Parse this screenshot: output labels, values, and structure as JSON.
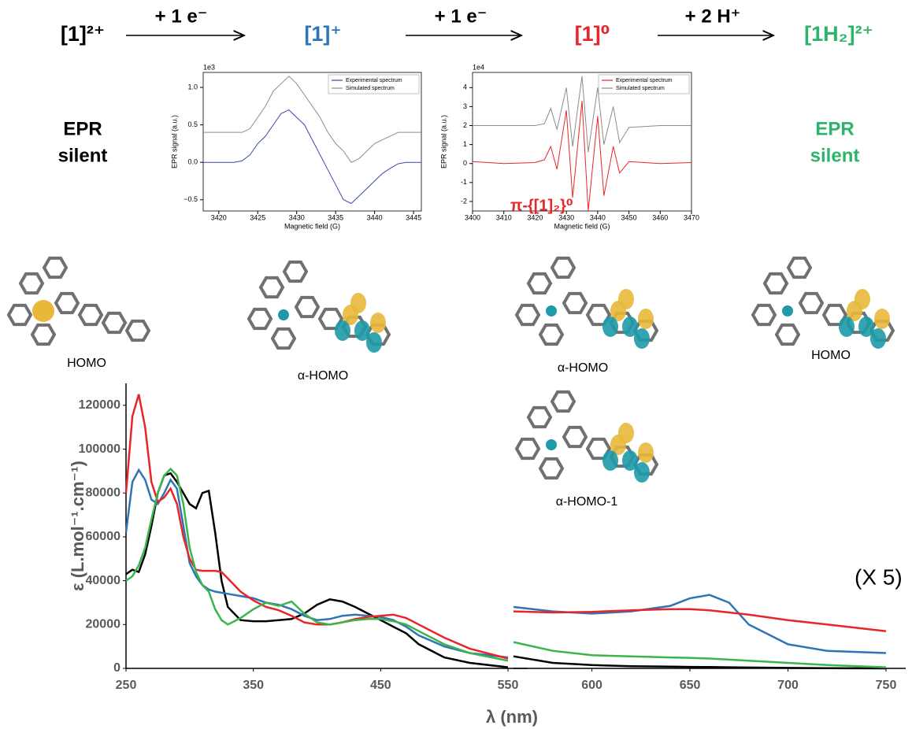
{
  "scheme": {
    "species": [
      {
        "text": "[1]²⁺",
        "color": "#000000"
      },
      {
        "text": "[1]⁺",
        "color": "#2e75b6"
      },
      {
        "text": "[1]⁰",
        "color": "#e8262a"
      },
      {
        "text": "[1H₂]²⁺",
        "color": "#2db36a"
      }
    ],
    "steps": [
      "+ 1 e⁻",
      "+ 1 e⁻",
      "+ 2 H⁺"
    ]
  },
  "epr_notes": [
    {
      "lines": [
        "EPR",
        "silent"
      ],
      "color": "#000000"
    },
    {
      "lines": [
        "EPR",
        "silent"
      ],
      "color": "#2db36a"
    }
  ],
  "orbitals": [
    "HOMO",
    "α-HOMO",
    "α-HOMO",
    "α-HOMO-1",
    "HOMO"
  ],
  "chart_data": [
    {
      "type": "line",
      "x_label": "Magnetic field (G)",
      "y_label": "EPR signal (a.u.)",
      "y_scale_label": "1e3",
      "xlim": [
        3418,
        3446
      ],
      "ylim": [
        -0.65,
        1.2
      ],
      "xticks": [
        3420,
        3425,
        3430,
        3435,
        3440,
        3445
      ],
      "yticks": [
        {
          "value": -0.5,
          "label": "−0.5"
        },
        {
          "value": 0,
          "label": "0.0"
        },
        {
          "value": 0.5,
          "label": "0.5"
        },
        {
          "value": 1.0,
          "label": "1.0"
        }
      ],
      "x": [
        3418,
        3419,
        3420,
        3421,
        3422,
        3423,
        3424,
        3425,
        3426,
        3427,
        3428,
        3429,
        3430,
        3431,
        3432,
        3433,
        3434,
        3435,
        3436,
        3437,
        3438,
        3439,
        3440,
        3441,
        3442,
        3443,
        3444,
        3445,
        3446
      ],
      "series": [
        {
          "name": "Experimental spectrum",
          "color": "#3b4aa8",
          "values": [
            0,
            0,
            0,
            0,
            0,
            0.02,
            0.1,
            0.25,
            0.35,
            0.5,
            0.65,
            0.7,
            0.6,
            0.5,
            0.3,
            0.1,
            -0.1,
            -0.3,
            -0.5,
            -0.55,
            -0.45,
            -0.35,
            -0.25,
            -0.15,
            -0.08,
            -0.02,
            0,
            0,
            0
          ]
        },
        {
          "name": "Simulated spectrum",
          "color": "#8c8c8c",
          "values": [
            0.4,
            0.4,
            0.4,
            0.4,
            0.4,
            0.4,
            0.45,
            0.6,
            0.75,
            0.95,
            1.05,
            1.15,
            1.05,
            0.9,
            0.75,
            0.6,
            0.4,
            0.25,
            0.15,
            0.0,
            0.05,
            0.15,
            0.25,
            0.3,
            0.35,
            0.4,
            0.4,
            0.4,
            0.4
          ]
        }
      ]
    },
    {
      "type": "line",
      "x_label": "Magnetic field (G)",
      "y_label": "EPR signal (a.u.)",
      "y_scale_label": "1e4",
      "annotation": "π-{[1]₂}⁰",
      "annotation_color": "#e8262a",
      "xlim": [
        3400,
        3470
      ],
      "ylim": [
        -2.5,
        4.8
      ],
      "xticks": [
        3400,
        3410,
        3420,
        3430,
        3440,
        3450,
        3460,
        3470
      ],
      "yticks": [
        -2,
        -1,
        0,
        1,
        2,
        3,
        4
      ],
      "x": [
        3400,
        3410,
        3420,
        3423,
        3425,
        3427,
        3430,
        3432,
        3435,
        3437,
        3440,
        3442,
        3445,
        3447,
        3450,
        3460,
        3470
      ],
      "series": [
        {
          "name": "Experimental spectrum",
          "color": "#e8262a",
          "values": [
            0.1,
            0,
            0.05,
            0.2,
            0.9,
            -0.3,
            2.8,
            -1.8,
            3.3,
            -2.5,
            2.5,
            -1.7,
            0.9,
            -0.5,
            0.1,
            0,
            0.05
          ]
        },
        {
          "name": "Simulated spectrum",
          "color": "#8c8c8c",
          "values": [
            2,
            2,
            2,
            2.1,
            2.9,
            1.8,
            4.0,
            0.9,
            4.6,
            0.6,
            4.0,
            1.0,
            3.0,
            1.1,
            1.9,
            2,
            2
          ]
        }
      ]
    },
    {
      "type": "line",
      "x_label": "λ (nm)",
      "y_label": "ε (L.mol⁻¹.cm⁻¹)",
      "xlim": [
        250,
        550
      ],
      "ylim": [
        0,
        130000
      ],
      "xticks": [
        250,
        350,
        450,
        550
      ],
      "yticks": [
        0,
        20000,
        40000,
        60000,
        80000,
        100000,
        120000
      ],
      "x": [
        250,
        255,
        260,
        265,
        270,
        275,
        280,
        285,
        290,
        295,
        300,
        305,
        310,
        315,
        320,
        325,
        330,
        340,
        350,
        360,
        370,
        380,
        390,
        400,
        410,
        420,
        430,
        440,
        450,
        460,
        470,
        480,
        500,
        520,
        550
      ],
      "series": [
        {
          "color": "#000000",
          "values": [
            43000,
            45000,
            44000,
            52000,
            65000,
            80000,
            88000,
            89000,
            85000,
            80000,
            75000,
            73000,
            80000,
            81000,
            62000,
            40000,
            28000,
            22000,
            21500,
            21500,
            22000,
            22500,
            25000,
            29000,
            31500,
            30500,
            28000,
            25000,
            22000,
            19000,
            16000,
            11000,
            5000,
            2500,
            500
          ]
        },
        {
          "color": "#2e75b6",
          "values": [
            62000,
            85000,
            90500,
            86000,
            77000,
            75000,
            80000,
            86000,
            82000,
            65000,
            48000,
            42000,
            38000,
            36000,
            35000,
            34500,
            34000,
            33000,
            32000,
            30000,
            29000,
            27000,
            24000,
            22000,
            22500,
            24000,
            24500,
            24000,
            23500,
            22000,
            19000,
            15000,
            10000,
            7000,
            5000
          ]
        },
        {
          "color": "#e8262a",
          "values": [
            80000,
            115000,
            125000,
            110000,
            85000,
            76000,
            78000,
            82000,
            75000,
            60000,
            50000,
            45000,
            44500,
            44500,
            44500,
            44000,
            41000,
            35000,
            31000,
            28000,
            26500,
            24000,
            21000,
            20000,
            20000,
            21000,
            22500,
            23500,
            24000,
            24500,
            23000,
            20000,
            14000,
            9000,
            4500
          ]
        },
        {
          "color": "#3cb44b",
          "values": [
            40000,
            42000,
            47000,
            55000,
            68000,
            80000,
            88000,
            91000,
            88000,
            75000,
            55000,
            44000,
            38000,
            35000,
            27000,
            22000,
            20000,
            23000,
            27000,
            30000,
            28500,
            30500,
            25000,
            21000,
            20000,
            21000,
            22000,
            22500,
            22500,
            21500,
            20000,
            17000,
            11000,
            7000,
            3500
          ]
        }
      ]
    },
    {
      "type": "line",
      "annotation": "(X 5)",
      "xlim": [
        560,
        750
      ],
      "ylim": [
        0,
        130000
      ],
      "xticks": [
        600,
        650,
        700,
        750
      ],
      "x": [
        560,
        580,
        600,
        620,
        640,
        650,
        660,
        670,
        680,
        700,
        720,
        750
      ],
      "series": [
        {
          "color": "#000000",
          "values": [
            5500,
            2500,
            1500,
            1000,
            800,
            700,
            600,
            500,
            400,
            200,
            100,
            0
          ]
        },
        {
          "color": "#2e75b6",
          "values": [
            28000,
            26000,
            25000,
            26000,
            28500,
            32000,
            33500,
            30000,
            20000,
            11000,
            8000,
            7000
          ]
        },
        {
          "color": "#e8262a",
          "values": [
            26000,
            25500,
            25800,
            26500,
            27000,
            27000,
            26500,
            25500,
            24500,
            22000,
            20000,
            17000
          ]
        },
        {
          "color": "#3cb44b",
          "values": [
            12000,
            8000,
            6000,
            5500,
            5000,
            4800,
            4500,
            4000,
            3500,
            2500,
            1500,
            500
          ]
        }
      ]
    }
  ]
}
